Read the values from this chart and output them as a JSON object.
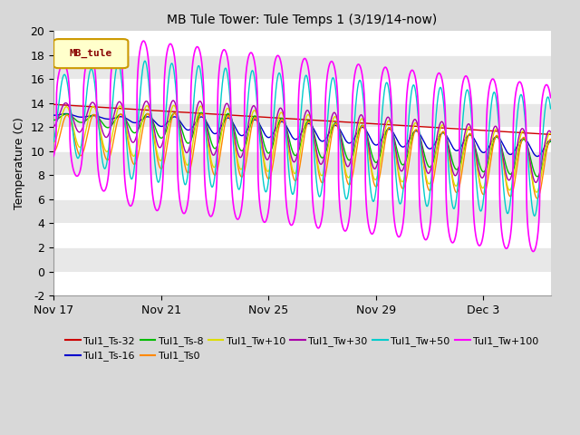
{
  "title": "MB Tule Tower: Tule Temps 1 (3/19/14-now)",
  "ylabel": "Temperature (C)",
  "ylim": [
    -2,
    20
  ],
  "yticks": [
    -2,
    0,
    2,
    4,
    6,
    8,
    10,
    12,
    14,
    16,
    18,
    20
  ],
  "bg_color": "#d8d8d8",
  "plot_bg_white": "#ffffff",
  "plot_bg_gray": "#e8e8e8",
  "legend_box_label": "MB_tule",
  "legend_box_facecolor": "#ffffcc",
  "legend_box_edgecolor": "#cc9900",
  "x_tick_positions": [
    0,
    4,
    8,
    12,
    16
  ],
  "x_tick_labels": [
    "Nov 17",
    "Nov 21",
    "Nov 25",
    "Nov 29",
    "Dec 3"
  ],
  "total_days": 18.5,
  "series": [
    {
      "label": "Tul1_Ts-32",
      "color": "#cc0000",
      "lw": 1.0
    },
    {
      "label": "Tul1_Ts-16",
      "color": "#0000cc",
      "lw": 1.0
    },
    {
      "label": "Tul1_Ts-8",
      "color": "#00bb00",
      "lw": 1.0
    },
    {
      "label": "Tul1_Ts0",
      "color": "#ff8800",
      "lw": 1.0
    },
    {
      "label": "Tul1_Tw+10",
      "color": "#dddd00",
      "lw": 1.0
    },
    {
      "label": "Tul1_Tw+30",
      "color": "#aa00aa",
      "lw": 1.0
    },
    {
      "label": "Tul1_Tw+50",
      "color": "#00cccc",
      "lw": 1.0
    },
    {
      "label": "Tul1_Tw+100",
      "color": "#ff00ff",
      "lw": 1.2
    }
  ]
}
